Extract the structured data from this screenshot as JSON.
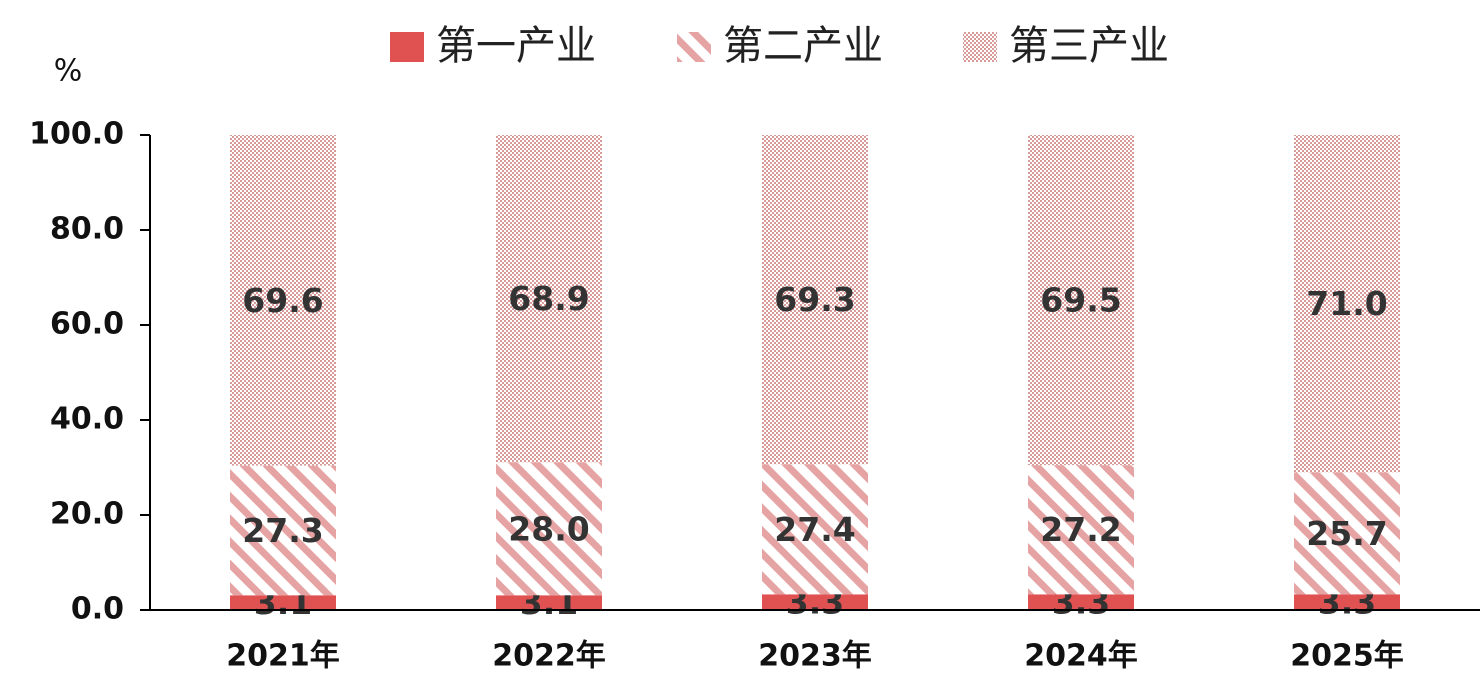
{
  "chart_data": {
    "type": "stacked_bar",
    "y_label": "%",
    "categories": [
      "2021年",
      "2022年",
      "2023年",
      "2024年",
      "2025年"
    ],
    "series": [
      {
        "name": "第一产业",
        "color": "#e05252",
        "pattern": "solid",
        "values": [
          3.1,
          3.1,
          3.3,
          3.3,
          3.3
        ],
        "value_labels": [
          "3.1",
          "3.1",
          "3.3",
          "3.3",
          "3.3"
        ]
      },
      {
        "name": "第二产业",
        "color": "#e6a3a3",
        "pattern": "stripes",
        "values": [
          27.3,
          28.0,
          27.4,
          27.2,
          25.7
        ],
        "value_labels": [
          "27.3",
          "28.0",
          "27.4",
          "27.2",
          "25.7"
        ]
      },
      {
        "name": "第三产业",
        "color": "#d99a9a",
        "pattern": "dots",
        "values": [
          69.6,
          68.9,
          69.3,
          69.5,
          71.0
        ],
        "value_labels": [
          "69.6",
          "68.9",
          "69.3",
          "69.5",
          "71.0"
        ]
      }
    ],
    "ylim": [
      0,
      100
    ],
    "yticks": [
      {
        "value": 0,
        "label": "0.0"
      },
      {
        "value": 20,
        "label": "20.0"
      },
      {
        "value": 40,
        "label": "40.0"
      },
      {
        "value": 60,
        "label": "60.0"
      },
      {
        "value": 80,
        "label": "80.0"
      },
      {
        "value": 100,
        "label": "100.0"
      }
    ],
    "grid": false
  }
}
